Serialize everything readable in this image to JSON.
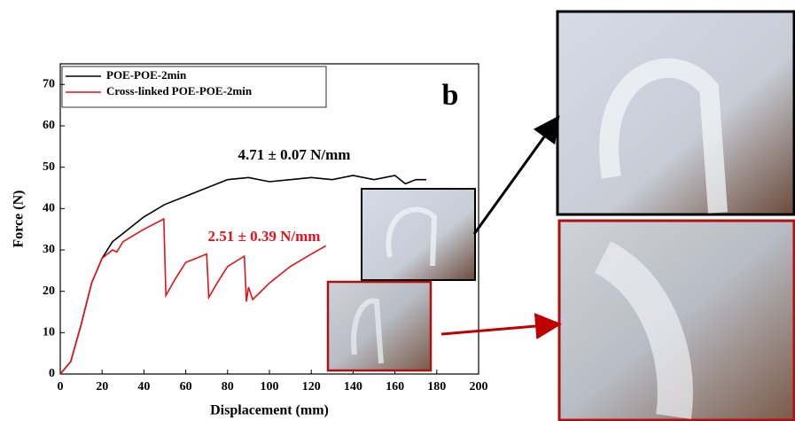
{
  "chart_data": {
    "type": "line",
    "xlabel": "Displacement (mm)",
    "ylabel": "Force (N)",
    "panel_label": "b",
    "xlim": [
      0,
      200
    ],
    "xticks": [
      0,
      20,
      40,
      60,
      80,
      100,
      120,
      140,
      160,
      180,
      200
    ],
    "ylim": [
      0,
      75
    ],
    "yticks": [
      0,
      10,
      20,
      30,
      40,
      50,
      60,
      70
    ],
    "legend": "upper left",
    "series": [
      {
        "name": "POE-POE-2min",
        "color": "#000000",
        "x": [
          0,
          5,
          10,
          15,
          20,
          25,
          30,
          40,
          50,
          60,
          70,
          80,
          90,
          100,
          110,
          120,
          130,
          140,
          150,
          160,
          165,
          170,
          175
        ],
        "values": [
          0,
          3,
          12,
          22,
          28,
          32,
          34,
          38,
          41,
          43,
          45,
          47,
          47.5,
          46.5,
          47,
          47.5,
          47,
          48,
          47,
          48,
          46,
          47,
          47
        ]
      },
      {
        "name": "Cross-linked POE-POE-2min",
        "color": "#e8101a",
        "x": [
          0,
          5,
          10,
          15,
          20,
          25,
          27,
          30,
          40,
          49.5,
          50.5,
          55,
          60,
          65,
          70,
          71,
          75,
          80,
          88,
          89,
          90,
          92,
          95,
          100,
          110,
          120,
          127
        ],
        "values": [
          0,
          3,
          12,
          22,
          28,
          30,
          29.5,
          32,
          35,
          37.5,
          19,
          23,
          27,
          28,
          29,
          18.5,
          22,
          26,
          28.5,
          17.5,
          21,
          18,
          19.5,
          22,
          26,
          29,
          31
        ]
      }
    ],
    "annotations": [
      {
        "text": "4.71 ± 0.07  N/mm",
        "color": "#000000"
      },
      {
        "text": "2.51 ± 0.39  N/mm",
        "color": "#e8101a"
      }
    ]
  }
}
